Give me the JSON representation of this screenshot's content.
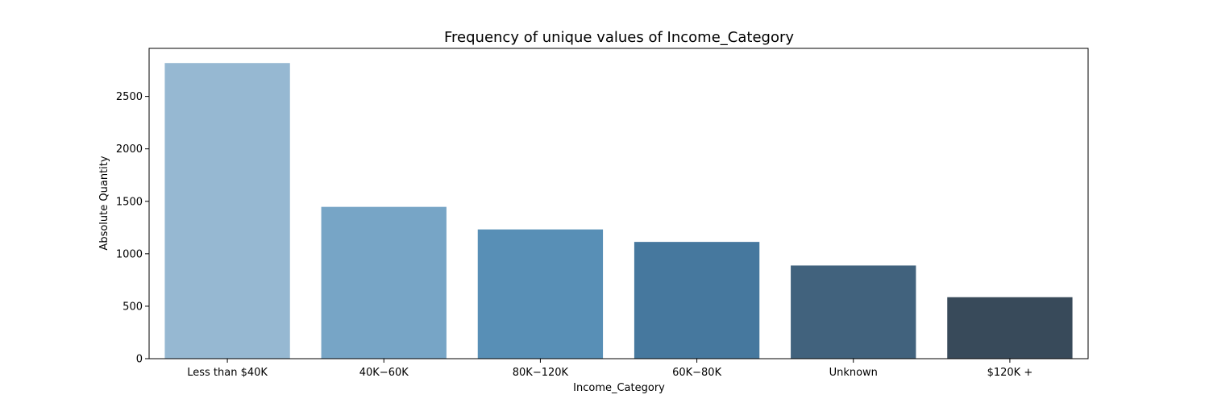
{
  "chart_data": {
    "type": "bar",
    "title": "Frequency of unique values of Income_Category",
    "xlabel": "Income_Category",
    "ylabel": "Absolute Quantity",
    "categories": [
      "Less than $40K",
      "$40K - $60K",
      "$80K - $120K",
      "$60K - $80K",
      "Unknown",
      "$120K +"
    ],
    "category_labels": [
      "Less than $40K",
      "40K−60K",
      "80K−120K",
      "60K−80K",
      "Unknown",
      "$120K +"
    ],
    "values": [
      2818,
      1447,
      1232,
      1113,
      888,
      586
    ],
    "colors": [
      "#96b8d2",
      "#77a5c6",
      "#588fb6",
      "#46789e",
      "#41627d",
      "#384a5a"
    ],
    "ylim": [
      0,
      2958
    ],
    "yticks": [
      0,
      500,
      1000,
      1500,
      2000,
      2500
    ],
    "grid": false,
    "legend": "none"
  }
}
